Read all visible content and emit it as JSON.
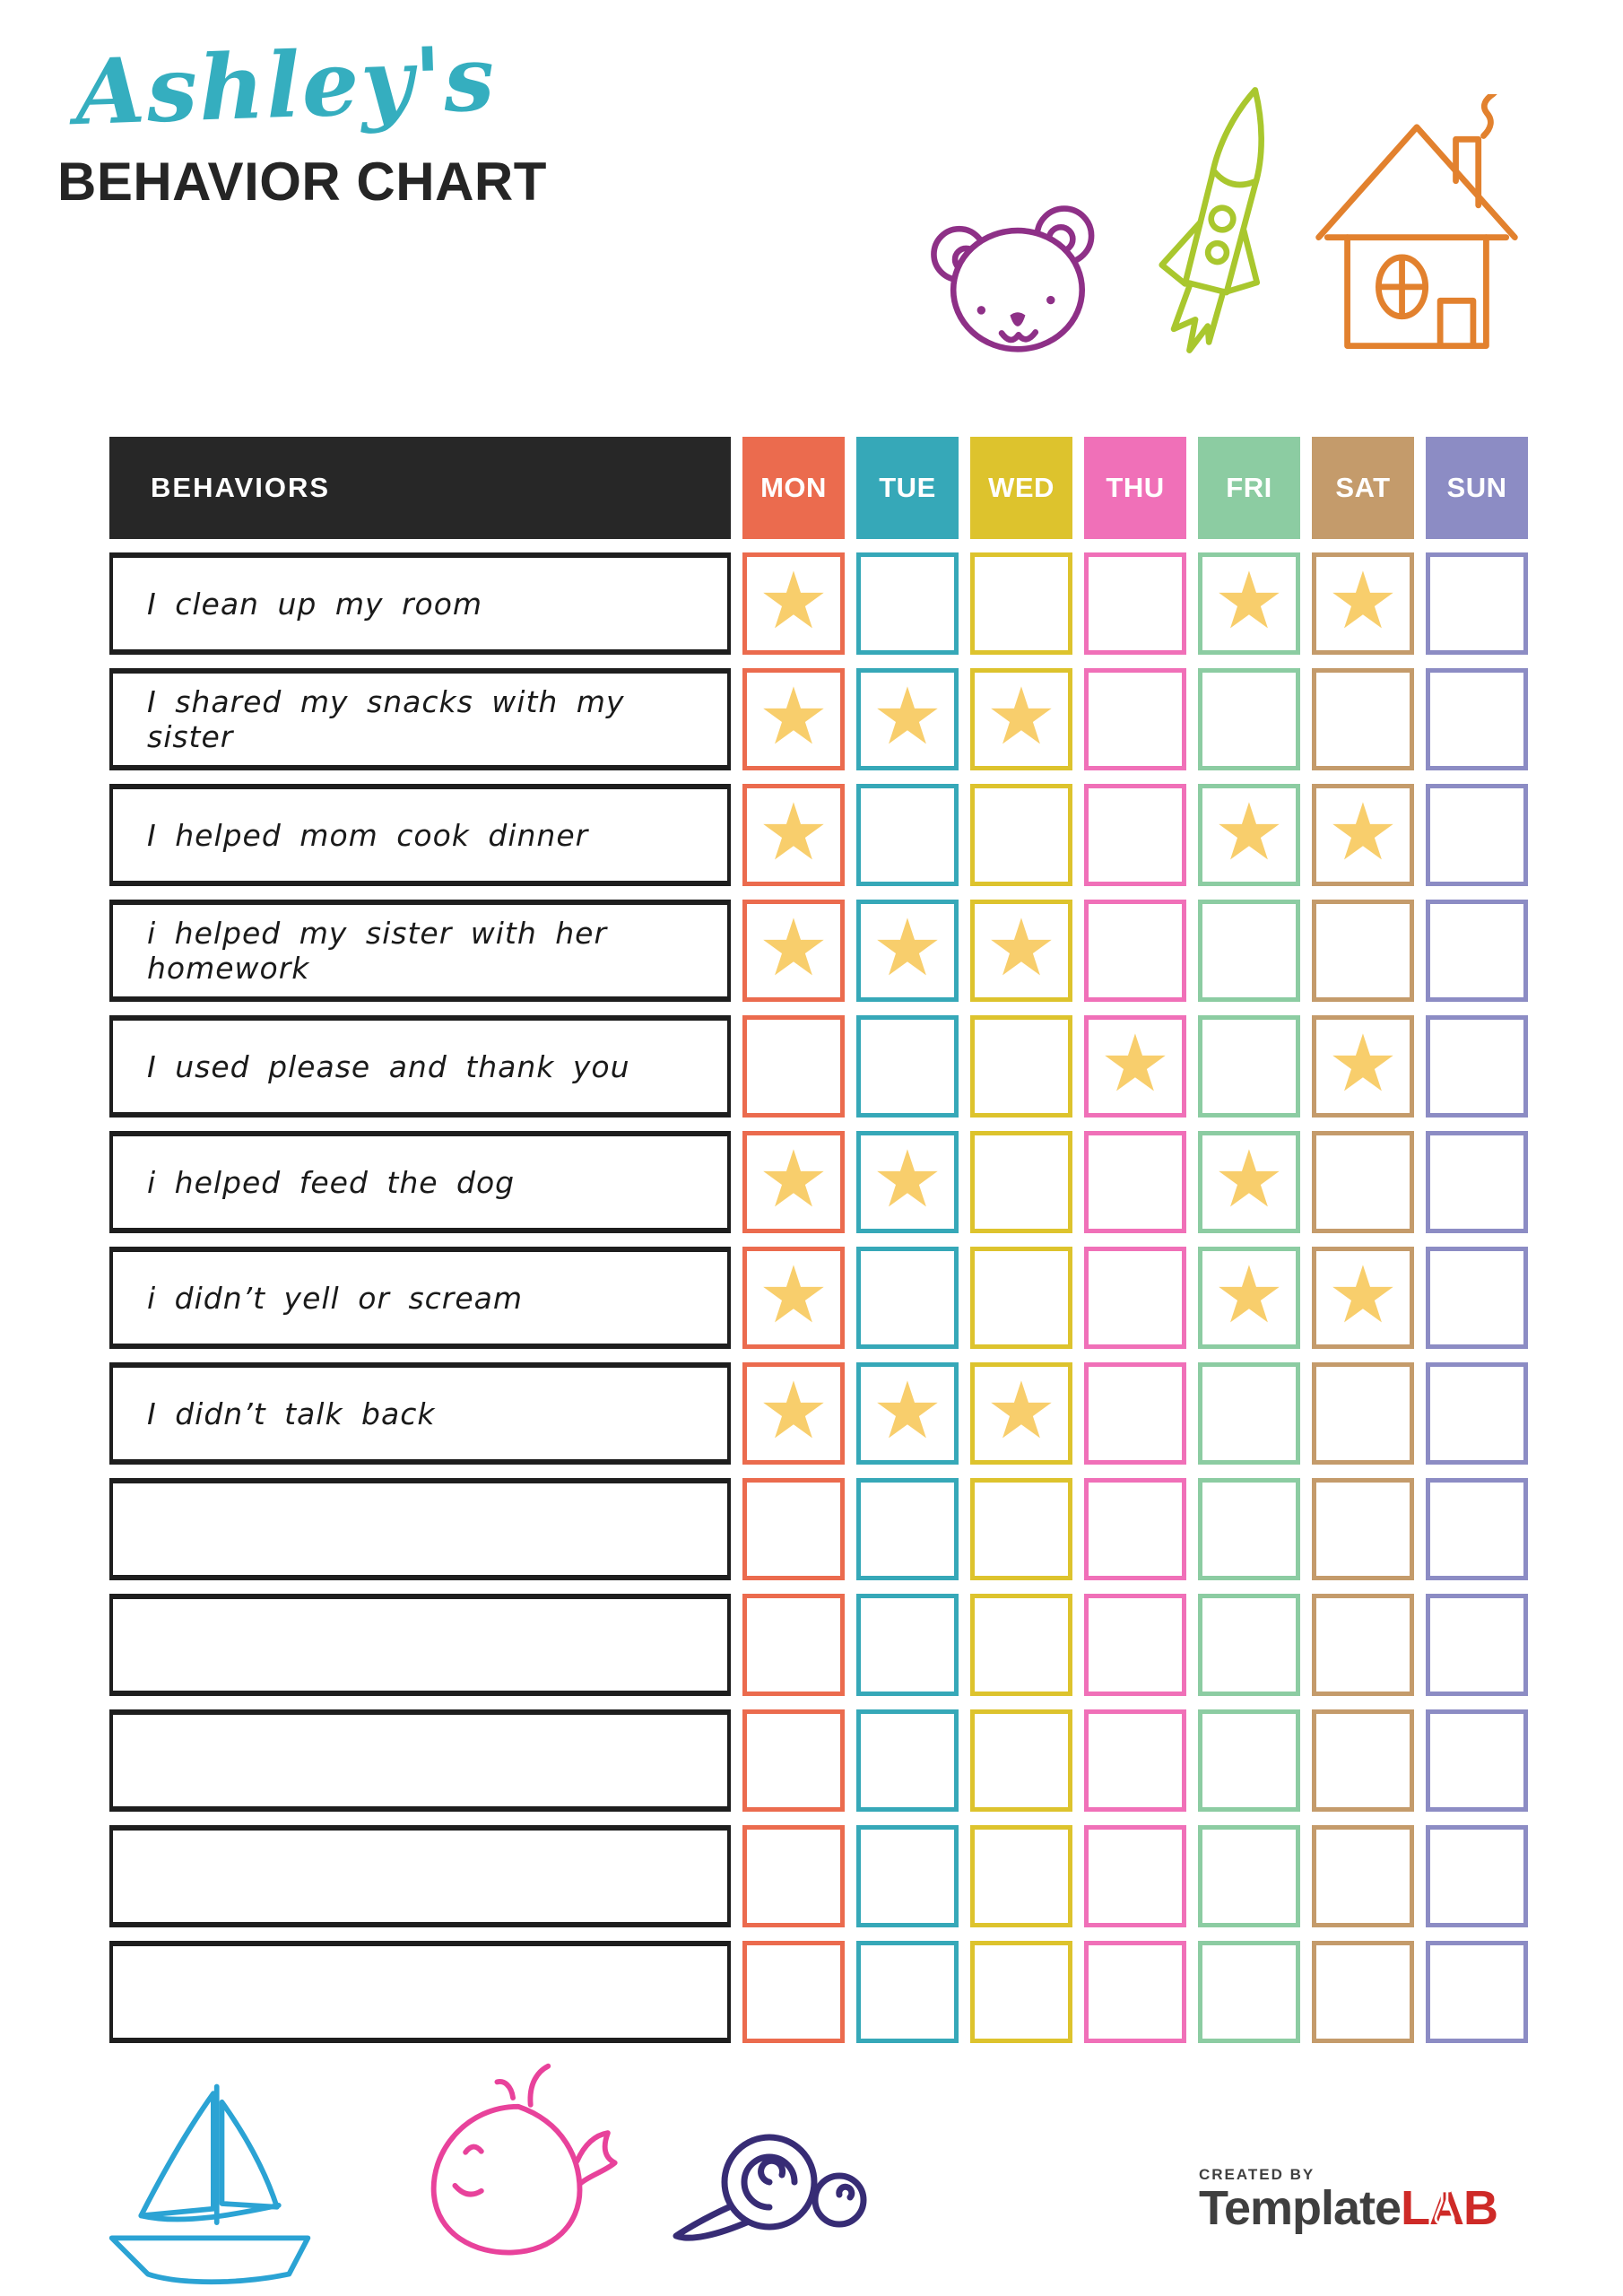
{
  "header": {
    "title_script": "Ashley's",
    "title_main": "BEHAVIOR CHART"
  },
  "table": {
    "behaviors_header": "BEHAVIORS",
    "header_bg": "#272727",
    "days": [
      {
        "label": "MON",
        "color": "#eb6b4e"
      },
      {
        "label": "TUE",
        "color": "#36a8b8"
      },
      {
        "label": "WED",
        "color": "#ddc32d"
      },
      {
        "label": "THU",
        "color": "#f070b8"
      },
      {
        "label": "FRI",
        "color": "#8ccca2"
      },
      {
        "label": "SAT",
        "color": "#c49b6b"
      },
      {
        "label": "SUN",
        "color": "#8c8cc4"
      }
    ],
    "star": {
      "glyph": "★",
      "color": "#f8ce6c"
    },
    "rows": [
      {
        "label": "I clean up my room",
        "stars": [
          1,
          0,
          0,
          0,
          1,
          1,
          0
        ]
      },
      {
        "label": "I shared my snacks with my sister",
        "stars": [
          1,
          1,
          1,
          0,
          0,
          0,
          0
        ]
      },
      {
        "label": "I helped mom cook dinner",
        "stars": [
          1,
          0,
          0,
          0,
          1,
          1,
          0
        ]
      },
      {
        "label": "i helped my sister with her homework",
        "stars": [
          1,
          1,
          1,
          0,
          0,
          0,
          0
        ]
      },
      {
        "label": "I used please and thank you",
        "stars": [
          0,
          0,
          0,
          1,
          0,
          1,
          0
        ]
      },
      {
        "label": "i helped feed the dog",
        "stars": [
          1,
          1,
          0,
          0,
          1,
          0,
          0
        ]
      },
      {
        "label": "i didn’t yell or scream",
        "stars": [
          1,
          0,
          0,
          0,
          1,
          1,
          0
        ]
      },
      {
        "label": "I didn’t talk back",
        "stars": [
          1,
          1,
          1,
          0,
          0,
          0,
          0
        ]
      },
      {
        "label": "",
        "stars": [
          0,
          0,
          0,
          0,
          0,
          0,
          0
        ]
      },
      {
        "label": "",
        "stars": [
          0,
          0,
          0,
          0,
          0,
          0,
          0
        ]
      },
      {
        "label": "",
        "stars": [
          0,
          0,
          0,
          0,
          0,
          0,
          0
        ]
      },
      {
        "label": "",
        "stars": [
          0,
          0,
          0,
          0,
          0,
          0,
          0
        ]
      },
      {
        "label": "",
        "stars": [
          0,
          0,
          0,
          0,
          0,
          0,
          0
        ]
      }
    ]
  },
  "doodles": {
    "bear_color": "#8e3087",
    "rocket_color": "#a9c72e",
    "house_color": "#e2812e",
    "boat_color": "#2ba3d4",
    "whale_color": "#e8429b",
    "snail_color": "#372c75"
  },
  "footer": {
    "created_by": "CREATED BY",
    "brand_name": "Template",
    "brand_suffix": "LAB",
    "brand_color": "#3f3f3f",
    "brand_accent": "#ce2a27"
  }
}
